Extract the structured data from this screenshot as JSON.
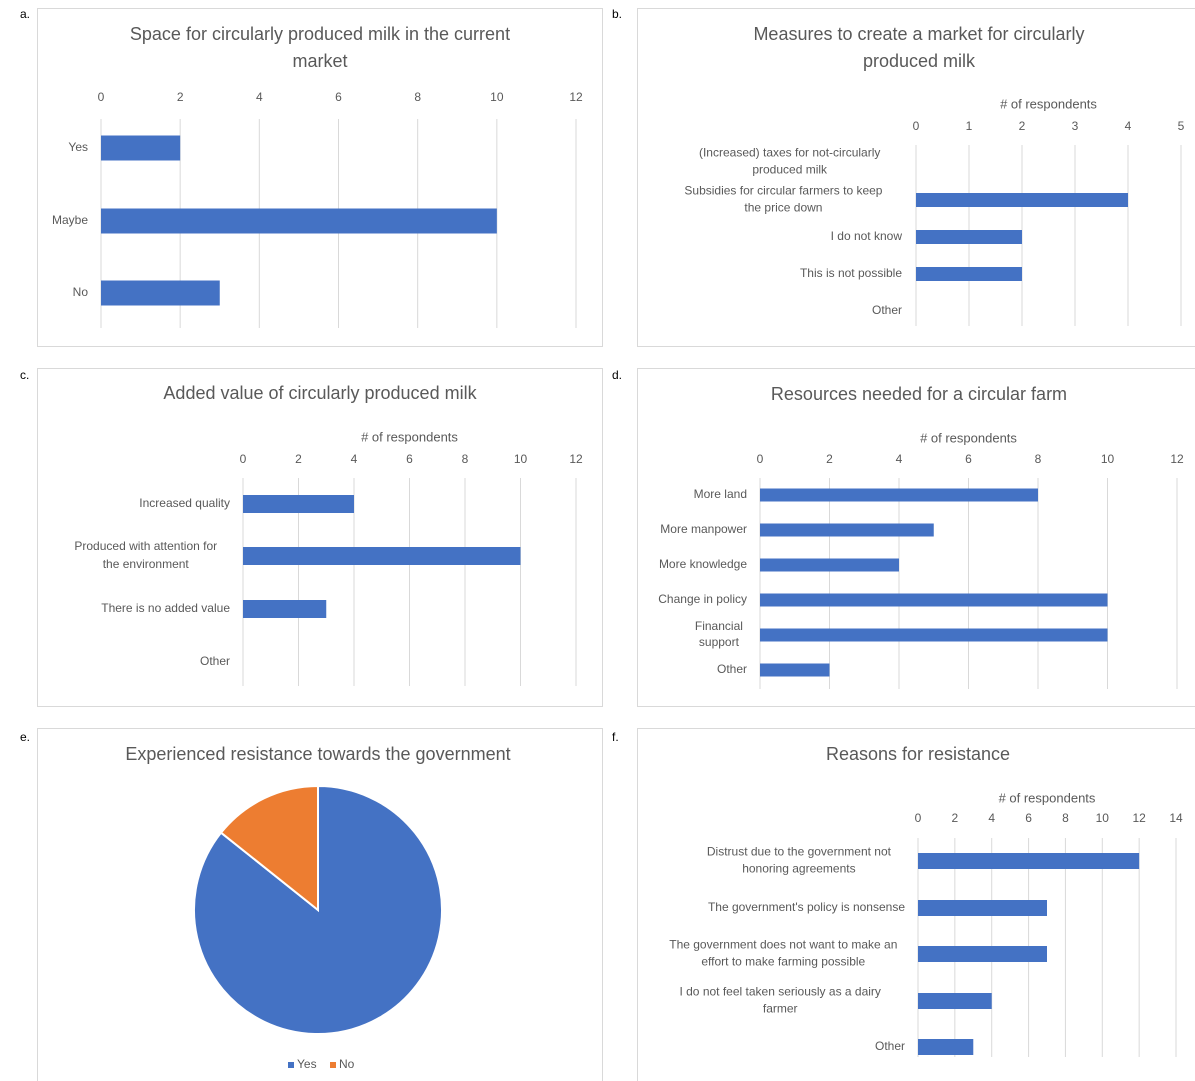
{
  "panels": [
    {
      "letter": "a.",
      "chart": {
        "type": "bar",
        "orientation": "horizontal",
        "title": "Space for circularly produced milk in the current market",
        "xlabel": "",
        "categories": [
          "Yes",
          "Maybe",
          "No"
        ],
        "values": [
          2,
          10,
          3
        ],
        "xlim": [
          0,
          12
        ],
        "ticks": [
          0,
          2,
          4,
          6,
          8,
          10,
          12
        ],
        "grid": true
      }
    },
    {
      "letter": "b.",
      "chart": {
        "type": "bar",
        "orientation": "horizontal",
        "title": "Measures to create a market for circularly produced milk",
        "xlabel": "# of respondents",
        "categories": [
          "(Increased) taxes for not-circularly produced milk",
          "Subsidies for circular farmers to keep the price down",
          "I do not know",
          "This is not possible",
          "Other"
        ],
        "values": [
          0,
          4,
          2,
          2,
          0
        ],
        "xlim": [
          0,
          5
        ],
        "ticks": [
          0,
          1,
          2,
          3,
          4,
          5
        ],
        "grid": true
      }
    },
    {
      "letter": "c.",
      "chart": {
        "type": "bar",
        "orientation": "horizontal",
        "title": "Added value of circularly produced milk",
        "xlabel": "# of respondents",
        "categories": [
          "Increased quality",
          "Produced with attention for the environment",
          "There is no added value",
          "Other"
        ],
        "values": [
          4,
          10,
          3,
          0
        ],
        "xlim": [
          0,
          12
        ],
        "ticks": [
          0,
          2,
          4,
          6,
          8,
          10,
          12
        ],
        "grid": true
      }
    },
    {
      "letter": "d.",
      "chart": {
        "type": "bar",
        "orientation": "horizontal",
        "title": "Resources needed for a circular farm",
        "xlabel": "# of respondents",
        "categories": [
          "More land",
          "More manpower",
          "More knowledge",
          "Change in policy",
          "Financial support",
          "Other"
        ],
        "values": [
          8,
          5,
          4,
          10,
          10,
          2
        ],
        "xlim": [
          0,
          12
        ],
        "ticks": [
          0,
          2,
          4,
          6,
          8,
          10,
          12
        ],
        "grid": true
      }
    },
    {
      "letter": "e.",
      "chart": {
        "type": "pie",
        "title": "Experienced  resistance towards the government",
        "slices": [
          {
            "name": "Yes",
            "value": 6
          },
          {
            "name": "No",
            "value": 1
          }
        ],
        "legend": "bottom"
      }
    },
    {
      "letter": "f.",
      "chart": {
        "type": "bar",
        "orientation": "horizontal",
        "title": "Reasons for resistance",
        "xlabel": "# of respondents",
        "categories": [
          "Distrust due to the government not honoring agreements",
          "The government's policy is nonsense",
          "The government does not want to make an effort to make farming possible",
          "I do not feel taken seriously as a dairy farmer",
          "Other"
        ],
        "values": [
          12,
          7,
          7,
          4,
          3
        ],
        "xlim": [
          0,
          14
        ],
        "ticks": [
          0,
          2,
          4,
          6,
          8,
          10,
          12,
          14
        ],
        "grid": true
      }
    }
  ],
  "colors": {
    "bar": "#4472c4",
    "pie_yes": "#4472c4",
    "pie_no": "#ed7d31",
    "grid": "#d9d9d9",
    "text": "#595959"
  }
}
